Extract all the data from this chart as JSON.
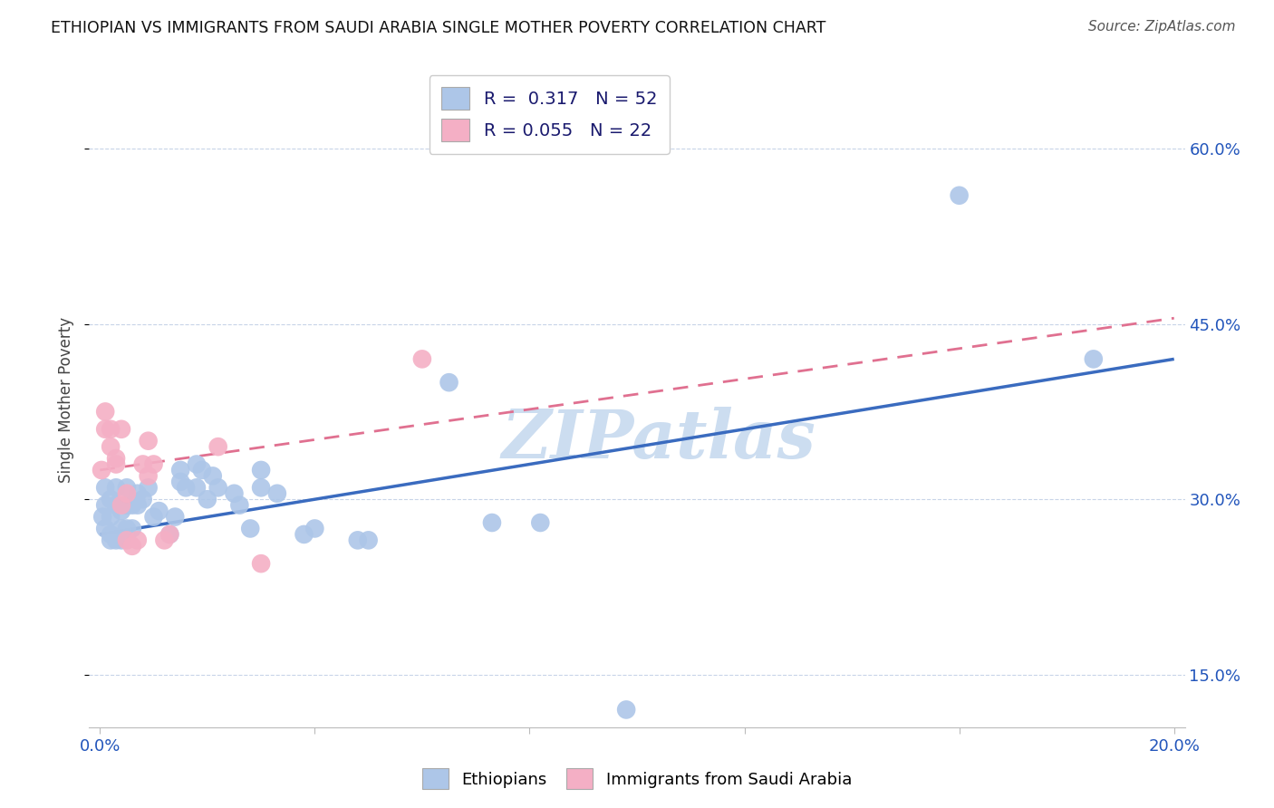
{
  "title": "ETHIOPIAN VS IMMIGRANTS FROM SAUDI ARABIA SINGLE MOTHER POVERTY CORRELATION CHART",
  "source": "Source: ZipAtlas.com",
  "ylabel": "Single Mother Poverty",
  "y_ticks": [
    0.15,
    0.3,
    0.45,
    0.6
  ],
  "y_tick_labels": [
    "15.0%",
    "30.0%",
    "45.0%",
    "60.0%"
  ],
  "xlim": [
    -0.002,
    0.202
  ],
  "ylim": [
    0.105,
    0.665
  ],
  "blue_color": "#adc6e8",
  "pink_color": "#f4afc5",
  "blue_line_color": "#3a6bbf",
  "pink_line_color": "#e07090",
  "watermark": "ZIPatlas",
  "watermark_color": "#ccddf0",
  "ethiopians_x": [
    0.0005,
    0.001,
    0.001,
    0.001,
    0.002,
    0.002,
    0.002,
    0.002,
    0.003,
    0.003,
    0.003,
    0.004,
    0.004,
    0.004,
    0.005,
    0.005,
    0.005,
    0.006,
    0.006,
    0.007,
    0.007,
    0.008,
    0.009,
    0.01,
    0.011,
    0.013,
    0.014,
    0.015,
    0.015,
    0.016,
    0.018,
    0.018,
    0.019,
    0.02,
    0.021,
    0.022,
    0.025,
    0.026,
    0.028,
    0.03,
    0.03,
    0.033,
    0.038,
    0.04,
    0.048,
    0.05,
    0.065,
    0.073,
    0.082,
    0.098,
    0.16,
    0.185
  ],
  "ethiopians_y": [
    0.285,
    0.31,
    0.295,
    0.275,
    0.3,
    0.285,
    0.27,
    0.265,
    0.31,
    0.295,
    0.265,
    0.29,
    0.275,
    0.265,
    0.31,
    0.295,
    0.275,
    0.295,
    0.275,
    0.305,
    0.295,
    0.3,
    0.31,
    0.285,
    0.29,
    0.27,
    0.285,
    0.315,
    0.325,
    0.31,
    0.31,
    0.33,
    0.325,
    0.3,
    0.32,
    0.31,
    0.305,
    0.295,
    0.275,
    0.31,
    0.325,
    0.305,
    0.27,
    0.275,
    0.265,
    0.265,
    0.4,
    0.28,
    0.28,
    0.12,
    0.56,
    0.42
  ],
  "saudi_x": [
    0.0003,
    0.001,
    0.001,
    0.002,
    0.002,
    0.003,
    0.003,
    0.004,
    0.004,
    0.005,
    0.005,
    0.006,
    0.007,
    0.008,
    0.009,
    0.009,
    0.01,
    0.012,
    0.013,
    0.022,
    0.03,
    0.06
  ],
  "saudi_y": [
    0.325,
    0.375,
    0.36,
    0.36,
    0.345,
    0.33,
    0.335,
    0.36,
    0.295,
    0.305,
    0.265,
    0.26,
    0.265,
    0.33,
    0.32,
    0.35,
    0.33,
    0.265,
    0.27,
    0.345,
    0.245,
    0.42
  ]
}
